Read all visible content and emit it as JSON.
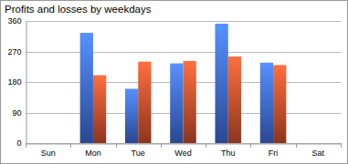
{
  "chart_data": {
    "type": "bar",
    "title": "Profits and losses by weekdays",
    "categories": [
      "Sun",
      "Mon",
      "Tue",
      "Wed",
      "Thu",
      "Fri",
      "Sat"
    ],
    "series": [
      {
        "color": "#3a62c8",
        "values": [
          null,
          325,
          160,
          235,
          352,
          237,
          null
        ]
      },
      {
        "color": "#c04a2a",
        "values": [
          null,
          200,
          240,
          242,
          255,
          230,
          null
        ]
      }
    ],
    "ylim": [
      0,
      360
    ],
    "yticks": [
      0,
      90,
      180,
      270,
      360
    ],
    "grid": true
  }
}
